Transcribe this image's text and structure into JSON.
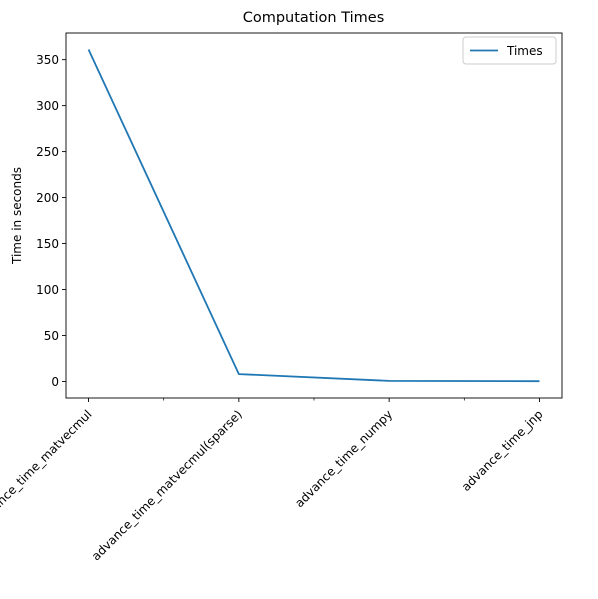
{
  "chart_data": {
    "type": "line",
    "title": "Computation Times",
    "xlabel": "",
    "ylabel": "Time in seconds",
    "categories": [
      "advance_time_matvecmul",
      "advance_time_matvecmul(sparse)",
      "advance_time_numpy",
      "advance_time_jnp"
    ],
    "series": [
      {
        "name": "Times",
        "color": "#1f77b4",
        "values": [
          361,
          8,
          0.6,
          0.3
        ]
      }
    ],
    "ylim": [
      -18,
      379
    ],
    "yticks": [
      0,
      50,
      100,
      150,
      200,
      250,
      300,
      350
    ],
    "xticks_minor": [
      0.5,
      1.5,
      2.5
    ],
    "legend": {
      "position": "top-right"
    },
    "grid": false
  }
}
